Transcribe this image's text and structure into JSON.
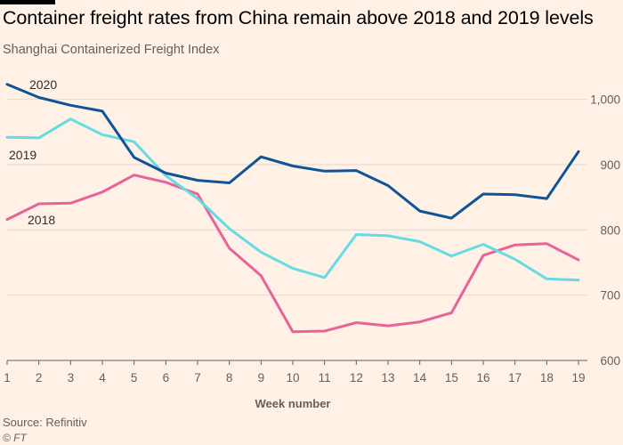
{
  "header": {
    "title": "Container freight rates from China remain above 2018 and 2019 levels",
    "subtitle": "Shanghai Containerized Freight Index"
  },
  "footer": {
    "source": "Source: Refinitiv",
    "credit": "© FT"
  },
  "colors": {
    "background": "#fff1e5",
    "grid": "#e3d9cf",
    "axis_text": "#66605c",
    "series_2020": "#0f5499",
    "series_2019": "#67dbe4",
    "series_2018": "#e76398"
  },
  "chart_data": {
    "type": "line",
    "title": "Container freight rates from China remain above 2018 and 2019 levels",
    "subtitle": "Shanghai Containerized Freight Index",
    "xlabel": "Week number",
    "ylabel": "",
    "x": [
      1,
      2,
      3,
      4,
      5,
      6,
      7,
      8,
      9,
      10,
      11,
      12,
      13,
      14,
      15,
      16,
      17,
      18,
      19
    ],
    "ylim": [
      600,
      1050
    ],
    "yticks": [
      600,
      700,
      800,
      900,
      1000
    ],
    "ytick_labels": [
      "600",
      "700",
      "800",
      "900",
      "1,000"
    ],
    "grid": true,
    "y_axis_side": "right",
    "series": [
      {
        "name": "2020",
        "color": "#0f5499",
        "values": [
          1023,
          1003,
          991,
          982,
          911,
          887,
          876,
          872,
          912,
          898,
          890,
          891,
          868,
          829,
          818,
          855,
          854,
          848,
          920
        ]
      },
      {
        "name": "2019",
        "color": "#67dbe4",
        "values": [
          942,
          941,
          970,
          946,
          935,
          883,
          848,
          802,
          766,
          741,
          727,
          793,
          791,
          782,
          760,
          778,
          755,
          725,
          723
        ]
      },
      {
        "name": "2018",
        "color": "#e76398",
        "values": [
          816,
          840,
          841,
          858,
          884,
          873,
          855,
          772,
          730,
          644,
          645,
          658,
          653,
          659,
          673,
          761,
          777,
          779,
          754
        ]
      }
    ]
  }
}
